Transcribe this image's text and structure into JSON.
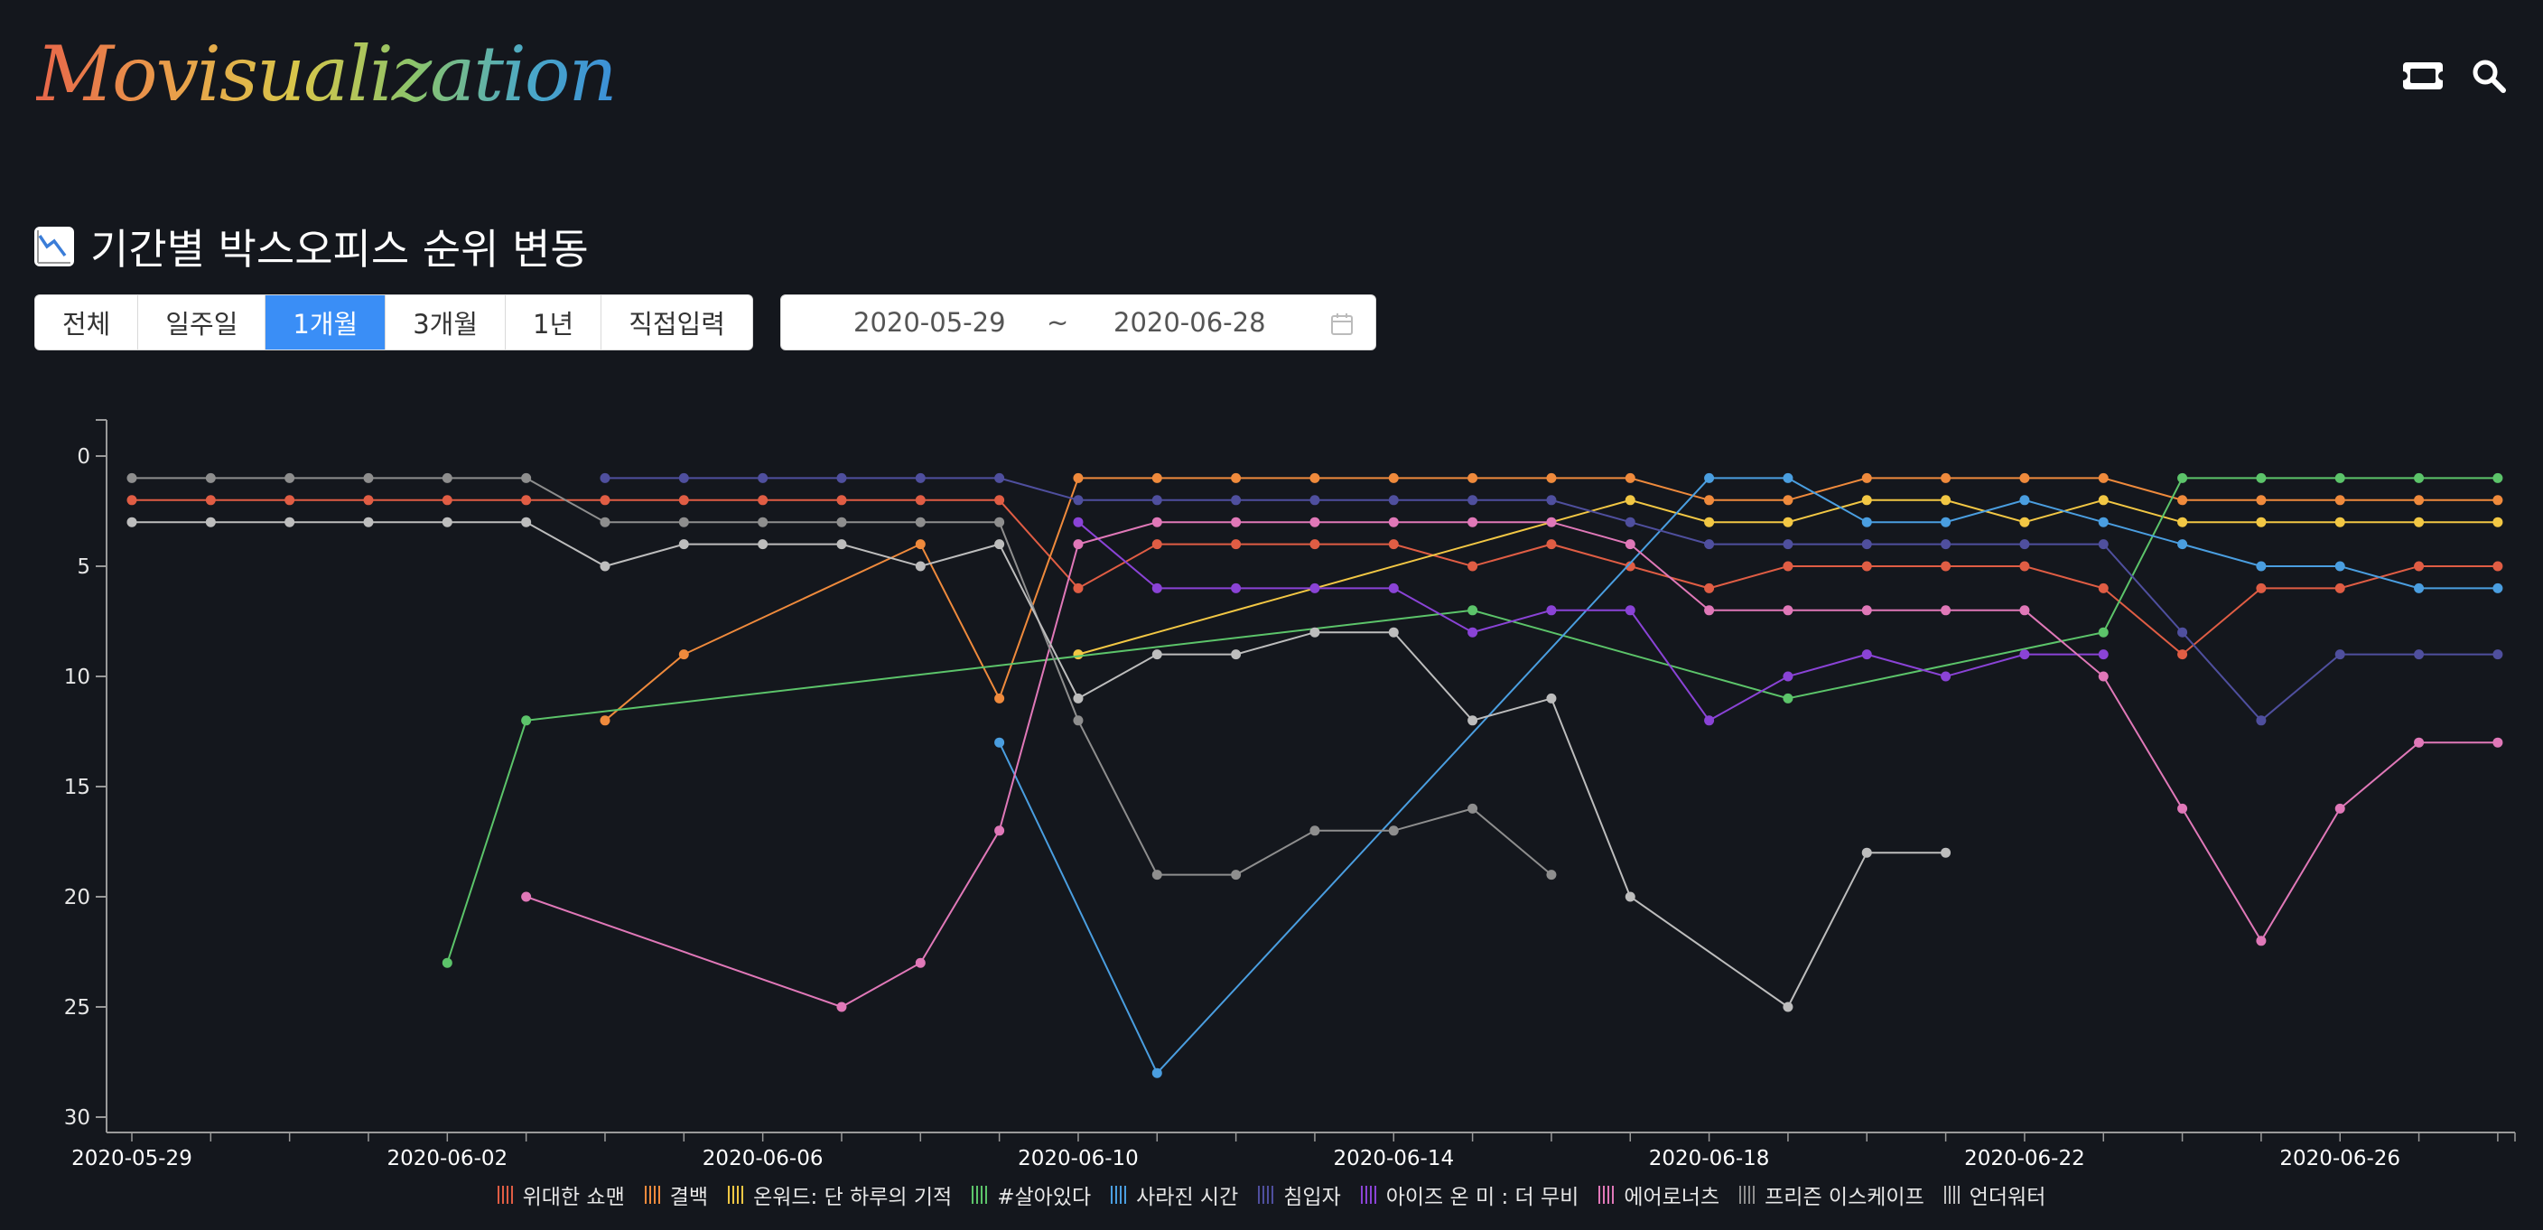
{
  "app": {
    "logo_text": "Movisualization"
  },
  "header_icons": [
    "ticket-icon",
    "search-icon"
  ],
  "page": {
    "title": "기간별 박스오피스 순위 변동",
    "title_icon": "chart-decreasing-icon"
  },
  "period_buttons": [
    {
      "label": "전체",
      "active": false
    },
    {
      "label": "일주일",
      "active": false
    },
    {
      "label": "1개월",
      "active": true
    },
    {
      "label": "3개월",
      "active": false
    },
    {
      "label": "1년",
      "active": false
    },
    {
      "label": "직접입력",
      "active": false
    }
  ],
  "date_range": {
    "start": "2020-05-29",
    "separator": "~",
    "end": "2020-06-28",
    "icon": "calendar-icon"
  },
  "chart_data": {
    "type": "line",
    "x_dates": [
      "2020-05-29",
      "2020-05-30",
      "2020-05-31",
      "2020-06-01",
      "2020-06-02",
      "2020-06-03",
      "2020-06-04",
      "2020-06-05",
      "2020-06-06",
      "2020-06-07",
      "2020-06-08",
      "2020-06-09",
      "2020-06-10",
      "2020-06-11",
      "2020-06-12",
      "2020-06-13",
      "2020-06-14",
      "2020-06-15",
      "2020-06-16",
      "2020-06-17",
      "2020-06-18",
      "2020-06-19",
      "2020-06-20",
      "2020-06-21",
      "2020-06-22",
      "2020-06-23",
      "2020-06-24",
      "2020-06-25",
      "2020-06-26",
      "2020-06-27",
      "2020-06-28"
    ],
    "x_tick_labels": [
      "2020-05-29",
      "2020-06-02",
      "2020-06-06",
      "2020-06-10",
      "2020-06-14",
      "2020-06-18",
      "2020-06-22",
      "2020-06-26"
    ],
    "y_ticks": [
      0,
      5,
      10,
      15,
      20,
      25,
      30
    ],
    "ylim": [
      0,
      30
    ],
    "y_inverted": true,
    "series": [
      {
        "name": "위대한 쇼맨",
        "color": "#e05d44",
        "values": [
          2,
          2,
          2,
          2,
          2,
          2,
          2,
          2,
          2,
          2,
          2,
          2,
          6,
          4,
          4,
          4,
          4,
          5,
          4,
          5,
          6,
          5,
          5,
          5,
          5,
          6,
          9,
          6,
          6,
          5,
          5
        ]
      },
      {
        "name": "결백",
        "color": "#ef8a3c",
        "values": [
          null,
          null,
          null,
          null,
          null,
          null,
          12,
          9,
          null,
          null,
          4,
          11,
          1,
          1,
          1,
          1,
          1,
          1,
          1,
          1,
          2,
          2,
          1,
          1,
          1,
          1,
          2,
          2,
          2,
          2,
          2
        ]
      },
      {
        "name": "온워드: 단 하루의 기적",
        "color": "#f2c744",
        "values": [
          null,
          null,
          null,
          null,
          null,
          null,
          null,
          null,
          null,
          null,
          null,
          null,
          9,
          null,
          null,
          null,
          null,
          null,
          null,
          2,
          3,
          3,
          2,
          2,
          3,
          2,
          3,
          3,
          3,
          3,
          3
        ]
      },
      {
        "name": "#살아있다",
        "color": "#5cc46a",
        "values": [
          null,
          null,
          null,
          null,
          23,
          12,
          null,
          null,
          null,
          null,
          null,
          null,
          null,
          null,
          null,
          null,
          null,
          7,
          null,
          null,
          null,
          11,
          null,
          null,
          null,
          8,
          1,
          1,
          1,
          1,
          1
        ]
      },
      {
        "name": "사라진 시간",
        "color": "#4a9ee0",
        "values": [
          null,
          null,
          null,
          null,
          null,
          null,
          null,
          null,
          null,
          null,
          null,
          13,
          null,
          28,
          null,
          null,
          null,
          null,
          null,
          null,
          1,
          1,
          3,
          3,
          2,
          3,
          4,
          5,
          5,
          6,
          6
        ]
      },
      {
        "name": "침입자",
        "color": "#4f4f9e",
        "values": [
          null,
          null,
          null,
          null,
          null,
          null,
          1,
          1,
          1,
          1,
          1,
          1,
          2,
          2,
          2,
          2,
          2,
          2,
          2,
          3,
          4,
          4,
          4,
          4,
          4,
          4,
          8,
          12,
          9,
          9,
          9
        ]
      },
      {
        "name": "아이즈 온 미 : 더 무비",
        "color": "#8a43d6",
        "values": [
          null,
          null,
          null,
          null,
          null,
          null,
          null,
          null,
          null,
          null,
          null,
          null,
          3,
          6,
          6,
          6,
          6,
          8,
          7,
          7,
          12,
          10,
          9,
          10,
          9,
          9,
          null,
          null,
          null,
          null,
          null
        ]
      },
      {
        "name": "에어로너츠",
        "color": "#e078b8",
        "values": [
          null,
          null,
          null,
          null,
          null,
          20,
          null,
          null,
          null,
          25,
          23,
          17,
          4,
          3,
          3,
          3,
          3,
          3,
          3,
          4,
          7,
          7,
          7,
          7,
          7,
          10,
          16,
          22,
          16,
          13,
          13
        ]
      },
      {
        "name": "프리즌 이스케이프",
        "color": "#8e8e8e",
        "values": [
          1,
          1,
          1,
          1,
          1,
          1,
          3,
          3,
          3,
          3,
          3,
          3,
          12,
          19,
          19,
          17,
          17,
          16,
          19,
          null,
          null,
          null,
          null,
          null,
          null,
          null,
          null,
          null,
          null,
          null,
          null
        ]
      },
      {
        "name": "언더워터",
        "color": "#bdbdbd",
        "values": [
          3,
          3,
          3,
          3,
          3,
          3,
          5,
          4,
          4,
          4,
          5,
          4,
          11,
          9,
          9,
          8,
          8,
          12,
          11,
          20,
          null,
          25,
          18,
          18,
          null,
          null,
          null,
          null,
          null,
          null,
          null
        ]
      }
    ]
  }
}
